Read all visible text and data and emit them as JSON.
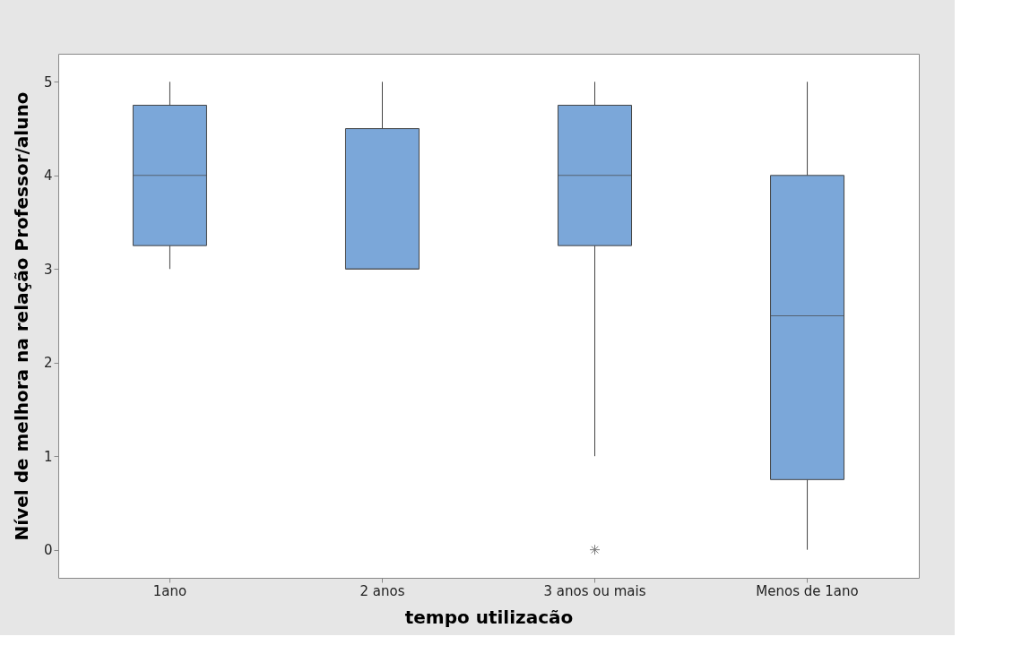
{
  "chart_data": {
    "type": "box",
    "xlabel": "tempo utilizacão",
    "ylabel": "Nível de melhora na relação Professor/aluno",
    "categories": [
      "1ano",
      "2 anos",
      "3 anos ou mais",
      "Menos de 1ano"
    ],
    "boxes": [
      {
        "low": 3,
        "q1": 3.25,
        "median": 4,
        "q3": 4.75,
        "high": 5
      },
      {
        "low": 3,
        "q1": 3,
        "median": 3,
        "q3": 4.5,
        "high": 5
      },
      {
        "low": 1,
        "q1": 3.25,
        "median": 4,
        "q3": 4.75,
        "high": 5,
        "outliers": [
          0
        ]
      },
      {
        "low": 0,
        "q1": 0.75,
        "median": 2.5,
        "q3": 4,
        "high": 5
      }
    ],
    "color": "#7ba7d9",
    "ylim": [
      -0.3,
      5.3
    ],
    "yticks": [
      0,
      1,
      2,
      3,
      4,
      5
    ],
    "grid": false
  }
}
